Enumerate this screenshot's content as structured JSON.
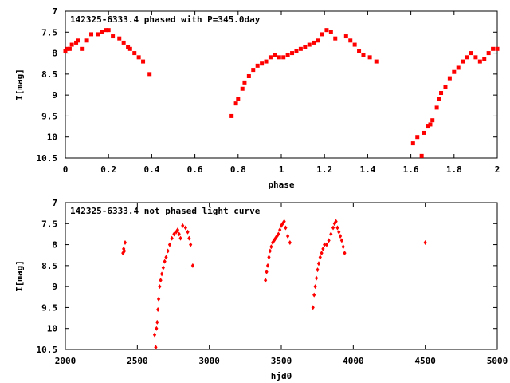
{
  "chart_data": [
    {
      "type": "scatter",
      "title": "142325-6333.4 phased with P=345.0day",
      "xlabel": "phase",
      "ylabel": "I[mag]",
      "xlim": [
        0,
        2
      ],
      "ylim": [
        10.5,
        7
      ],
      "y_inverted": true,
      "grid": false,
      "xticks": [
        "0",
        "0.2",
        "0.4",
        "0.6",
        "0.8",
        "1",
        "1.2",
        "1.4",
        "1.6",
        "1.8",
        "2"
      ],
      "yticks": [
        "7",
        "7.5",
        "8",
        "8.5",
        "9",
        "9.5",
        "10",
        "10.5"
      ],
      "marker_color": "#ff0000",
      "series": [
        {
          "x": [
            0.0,
            0.01,
            0.02,
            0.03,
            0.05,
            0.06,
            0.08,
            0.1,
            0.12,
            0.15,
            0.17,
            0.19,
            0.2,
            0.22,
            0.25,
            0.27,
            0.29,
            0.3,
            0.32,
            0.34,
            0.36,
            0.39,
            0.77,
            0.79,
            0.8,
            0.82,
            0.83,
            0.85,
            0.87,
            0.89,
            0.91,
            0.93,
            0.95,
            0.97,
            0.99,
            1.01,
            1.03,
            1.05,
            1.07,
            1.09,
            1.11,
            1.13,
            1.15,
            1.17,
            1.19,
            1.21,
            1.23,
            1.25,
            1.3,
            1.32,
            1.34,
            1.36,
            1.38,
            1.41,
            1.44,
            1.61,
            1.63,
            1.65,
            1.66,
            1.68,
            1.69,
            1.7,
            1.72,
            1.73,
            1.74,
            1.76,
            1.78,
            1.8,
            1.82,
            1.84,
            1.86,
            1.88,
            1.9,
            1.92,
            1.94,
            1.96,
            1.98,
            2.0
          ],
          "y": [
            7.95,
            7.9,
            7.9,
            7.8,
            7.75,
            7.7,
            7.9,
            7.7,
            7.55,
            7.55,
            7.5,
            7.45,
            7.45,
            7.6,
            7.65,
            7.75,
            7.85,
            7.9,
            8.0,
            8.1,
            8.2,
            8.5,
            9.5,
            9.2,
            9.1,
            8.85,
            8.7,
            8.55,
            8.4,
            8.3,
            8.25,
            8.2,
            8.1,
            8.05,
            8.1,
            8.1,
            8.05,
            8.0,
            7.95,
            7.9,
            7.85,
            7.8,
            7.75,
            7.7,
            7.55,
            7.45,
            7.5,
            7.65,
            7.6,
            7.7,
            7.8,
            7.95,
            8.05,
            8.1,
            8.2,
            10.15,
            10.0,
            10.45,
            9.9,
            9.75,
            9.7,
            9.6,
            9.3,
            9.1,
            8.95,
            8.8,
            8.6,
            8.45,
            8.35,
            8.2,
            8.1,
            8.0,
            8.1,
            8.2,
            8.15,
            8.0,
            7.9,
            7.9
          ]
        }
      ]
    },
    {
      "type": "scatter",
      "title": "142325-6333.4 not phased light curve",
      "xlabel": "hjd0",
      "ylabel": "I[mag]",
      "xlim": [
        2000,
        5000
      ],
      "ylim": [
        10.5,
        7
      ],
      "y_inverted": true,
      "grid": false,
      "xticks": [
        "2000",
        "2500",
        "3000",
        "3500",
        "4000",
        "4500",
        "5000"
      ],
      "yticks": [
        "7",
        "7.5",
        "8",
        "8.5",
        "9",
        "9.5",
        "10",
        "10.5"
      ],
      "marker_color": "#ff0000",
      "series": [
        {
          "x": [
            2400,
            2405,
            2410,
            2415,
            2620,
            2628,
            2633,
            2638,
            2643,
            2648,
            2655,
            2662,
            2670,
            2680,
            2690,
            2700,
            2712,
            2725,
            2740,
            2755,
            2770,
            2780,
            2790,
            2800,
            2815,
            2835,
            2850,
            2860,
            2870,
            2885,
            3390,
            3398,
            3406,
            3414,
            3422,
            3430,
            3440,
            3450,
            3460,
            3470,
            3480,
            3490,
            3500,
            3510,
            3520,
            3530,
            3545,
            3560,
            3720,
            3728,
            3736,
            3744,
            3752,
            3760,
            3770,
            3780,
            3790,
            3800,
            3815,
            3830,
            3845,
            3860,
            3870,
            3880,
            3890,
            3900,
            3910,
            3920,
            3930,
            3940,
            4500
          ],
          "y": [
            8.2,
            8.1,
            8.15,
            7.95,
            10.15,
            10.45,
            10.0,
            9.85,
            9.55,
            9.3,
            9.0,
            8.85,
            8.7,
            8.55,
            8.4,
            8.3,
            8.15,
            8.0,
            7.85,
            7.75,
            7.7,
            7.65,
            7.75,
            7.85,
            7.55,
            7.6,
            7.7,
            7.85,
            8.0,
            8.5,
            8.85,
            8.65,
            8.5,
            8.3,
            8.15,
            8.05,
            7.95,
            7.9,
            7.85,
            7.8,
            7.75,
            7.65,
            7.55,
            7.5,
            7.45,
            7.6,
            7.8,
            7.95,
            9.5,
            9.2,
            9.0,
            8.8,
            8.6,
            8.45,
            8.3,
            8.2,
            8.1,
            8.0,
            8.0,
            7.9,
            7.75,
            7.6,
            7.5,
            7.45,
            7.6,
            7.7,
            7.8,
            7.9,
            8.05,
            8.2,
            7.95
          ]
        }
      ]
    }
  ]
}
